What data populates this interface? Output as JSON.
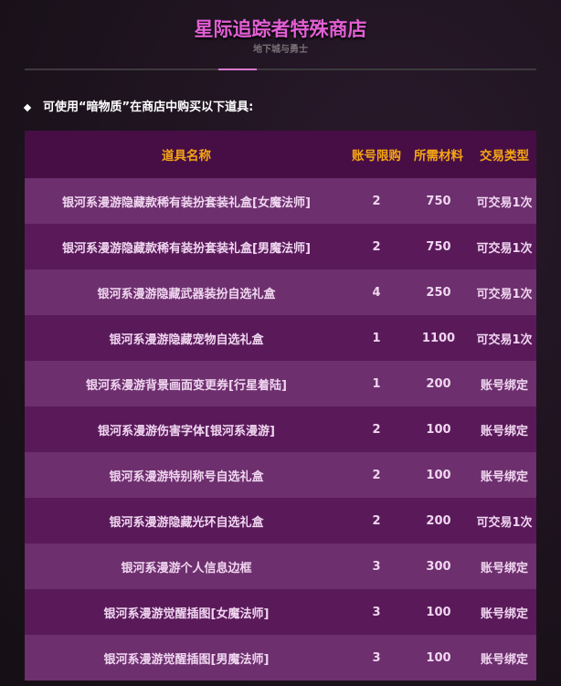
{
  "header": {
    "title": "星际追踪者特殊商店",
    "subtitle": "地下城与勇士"
  },
  "note": "可使用“暗物质”在商店中购买以下道具:",
  "colors": {
    "accent": "#e25fd4",
    "header_text": "#f5a512",
    "header_bg": "#460e45",
    "row_odd": "#6d2f6e",
    "row_even": "#5a1a5a"
  },
  "table": {
    "columns": [
      "道具名称",
      "账号限购",
      "所需材料",
      "交易类型"
    ],
    "rows": [
      [
        "银河系漫游隐藏款稀有装扮套装礼盒[女魔法师]",
        "2",
        "750",
        "可交易1次"
      ],
      [
        "银河系漫游隐藏款稀有装扮套装礼盒[男魔法师]",
        "2",
        "750",
        "可交易1次"
      ],
      [
        "银河系漫游隐藏武器装扮自选礼盒",
        "4",
        "250",
        "可交易1次"
      ],
      [
        "银河系漫游隐藏宠物自选礼盒",
        "1",
        "1100",
        "可交易1次"
      ],
      [
        "银河系漫游背景画面变更券[行星着陆]",
        "1",
        "200",
        "账号绑定"
      ],
      [
        "银河系漫游伤害字体[银河系漫游]",
        "2",
        "100",
        "账号绑定"
      ],
      [
        "银河系漫游特别称号自选礼盒",
        "2",
        "100",
        "账号绑定"
      ],
      [
        "银河系漫游隐藏光环自选礼盒",
        "2",
        "200",
        "可交易1次"
      ],
      [
        "银河系漫游个人信息边框",
        "3",
        "300",
        "账号绑定"
      ],
      [
        "银河系漫游觉醒插图[女魔法师]",
        "3",
        "100",
        "账号绑定"
      ],
      [
        "银河系漫游觉醒插图[男魔法师]",
        "3",
        "100",
        "账号绑定"
      ]
    ]
  }
}
